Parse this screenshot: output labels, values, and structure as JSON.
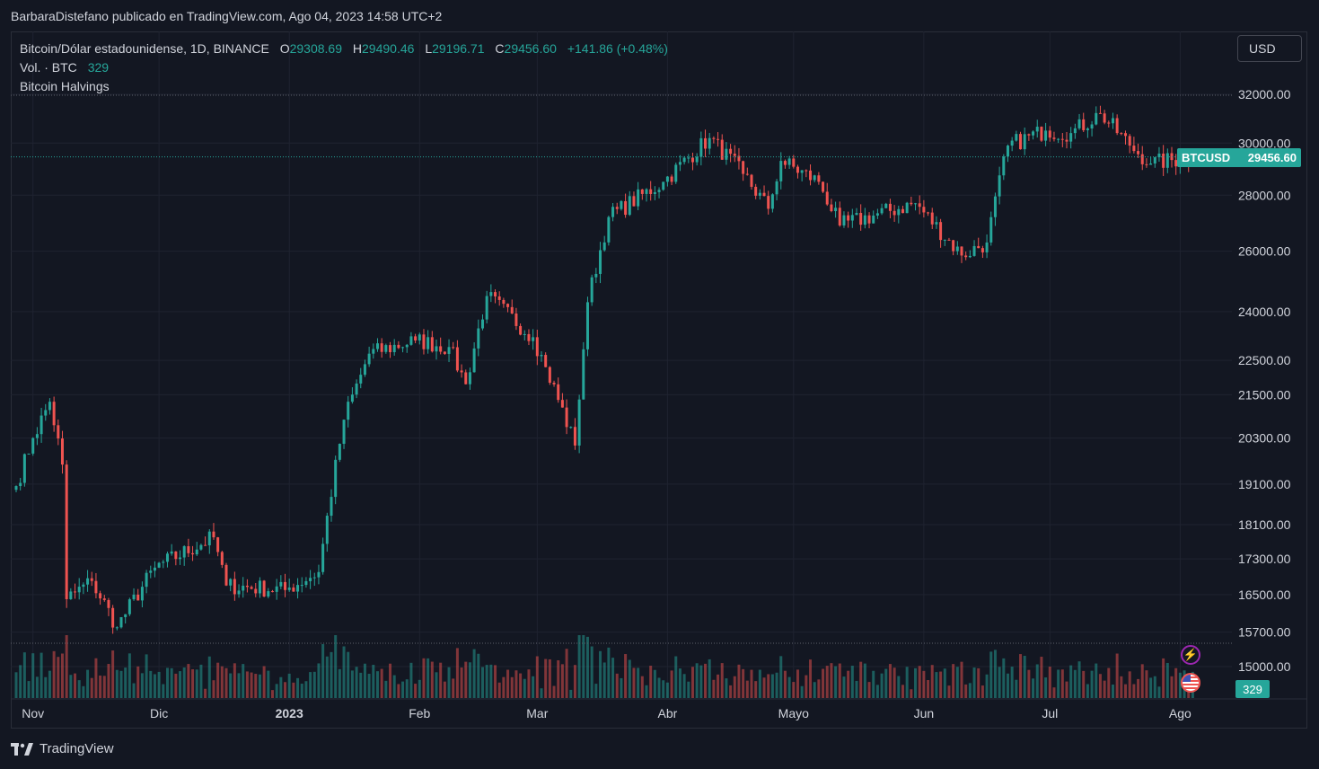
{
  "attribution": "BarbaraDistefano publicado en TradingView.com, Ago 04, 2023 14:58 UTC+2",
  "legend": {
    "symbol": "Bitcoin/Dólar estadounidense, 1D, BINANCE",
    "open_label": "O",
    "open": "29308.69",
    "high_label": "H",
    "high": "29490.46",
    "low_label": "L",
    "low": "29196.71",
    "close_label": "C",
    "close": "29456.60",
    "change": "+141.86 (+0.48%)",
    "volume_label": "Vol. · BTC",
    "volume": "329",
    "indicator": "Bitcoin Halvings"
  },
  "currency_button": "USD",
  "price_label": {
    "ticker": "BTCUSD",
    "price": "29456.60"
  },
  "volume_label": "329",
  "logo_text": "TradingView",
  "colors": {
    "up": "#26a69a",
    "down": "#ef5350",
    "background": "#131722",
    "grid": "#1f2330",
    "text": "#d1d4dc"
  },
  "icons": [
    "flash-icon",
    "us-flag-icon",
    "tradingview-logo-icon"
  ],
  "chart_data": {
    "type": "candlestick",
    "scale": "log",
    "y_ticks": [
      32000,
      30000,
      28000,
      26000,
      24000,
      22500,
      21500,
      20300,
      19100,
      18100,
      17300,
      16500,
      15700,
      15000
    ],
    "y_tick_labels": [
      "32000.00",
      "30000.00",
      "28000.00",
      "26000.00",
      "24000.00",
      "22500.00",
      "21500.00",
      "20300.00",
      "19100.00",
      "18100.00",
      "17300.00",
      "16500.00",
      "15700.00",
      "15000.00"
    ],
    "x_tick_labels": [
      "Nov",
      "Dic",
      "2023",
      "Feb",
      "Mar",
      "Abr",
      "Mayo",
      "Jun",
      "Jul",
      "Ago"
    ],
    "x_tick_dates": [
      "2022-11-01",
      "2022-12-01",
      "2023-01-01",
      "2023-02-01",
      "2023-03-01",
      "2023-04-01",
      "2023-05-01",
      "2023-06-01",
      "2023-07-01",
      "2023-08-01"
    ],
    "start_date": "2022-10-28",
    "end_date": "2023-08-04",
    "last_price": 29456.6,
    "anchors": [
      [
        "2022-10-28",
        19050
      ],
      [
        "2022-11-01",
        20300
      ],
      [
        "2022-11-05",
        21300
      ],
      [
        "2022-11-08",
        19600
      ],
      [
        "2022-11-09",
        16400
      ],
      [
        "2022-11-15",
        16800
      ],
      [
        "2022-11-21",
        15800
      ],
      [
        "2022-11-30",
        17100
      ],
      [
        "2022-12-14",
        17800
      ],
      [
        "2022-12-17",
        16700
      ],
      [
        "2022-12-31",
        16600
      ],
      [
        "2023-01-08",
        17000
      ],
      [
        "2023-01-14",
        20800
      ],
      [
        "2023-01-20",
        22700
      ],
      [
        "2023-01-31",
        23100
      ],
      [
        "2023-02-08",
        22900
      ],
      [
        "2023-02-12",
        21800
      ],
      [
        "2023-02-17",
        24500
      ],
      [
        "2023-02-28",
        23200
      ],
      [
        "2023-03-03",
        22300
      ],
      [
        "2023-03-10",
        20100
      ],
      [
        "2023-03-13",
        24300
      ],
      [
        "2023-03-18",
        27200
      ],
      [
        "2023-03-31",
        28500
      ],
      [
        "2023-04-11",
        30200
      ],
      [
        "2023-04-19",
        28800
      ],
      [
        "2023-04-25",
        27500
      ],
      [
        "2023-04-28",
        29300
      ],
      [
        "2023-05-07",
        28500
      ],
      [
        "2023-05-12",
        26900
      ],
      [
        "2023-05-30",
        27700
      ],
      [
        "2023-06-10",
        25850
      ],
      [
        "2023-06-16",
        26300
      ],
      [
        "2023-06-21",
        29900
      ],
      [
        "2023-06-30",
        30500
      ],
      [
        "2023-07-06",
        30400
      ],
      [
        "2023-07-13",
        31200
      ],
      [
        "2023-07-20",
        29900
      ],
      [
        "2023-07-25",
        29200
      ],
      [
        "2023-08-04",
        29456.6
      ]
    ],
    "volume_level": 329
  }
}
